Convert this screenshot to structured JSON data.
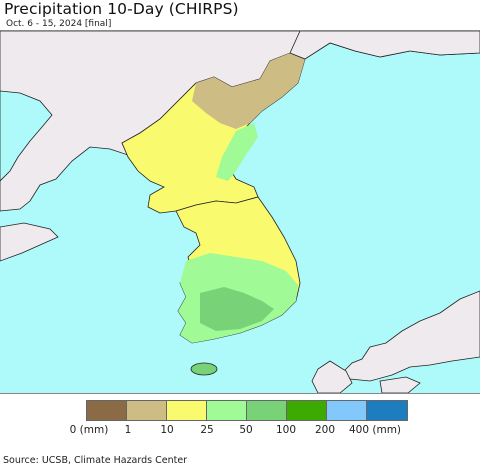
{
  "title": "Precipitation 10-Day (CHIRPS)",
  "subtitle": "Oct. 6 - 15, 2024 [final]",
  "source": "Source: UCSB, Climate Hazards Center",
  "colors": {
    "ocean": "#aefafa",
    "land_outside": "#eeeaee",
    "border": "#222222"
  },
  "legend": {
    "bins": [
      {
        "color": "#8b6b45",
        "label": "0 (mm)"
      },
      {
        "color": "#cdbc84",
        "label": "1"
      },
      {
        "color": "#fafa6e",
        "label": "10"
      },
      {
        "color": "#a0fa96",
        "label": "25"
      },
      {
        "color": "#78d278",
        "label": "50"
      },
      {
        "color": "#3caa00",
        "label": "100"
      },
      {
        "color": "#82c8fa",
        "label": "200"
      },
      {
        "color": "#1e7dbe",
        "label": "400 (mm)"
      }
    ]
  }
}
